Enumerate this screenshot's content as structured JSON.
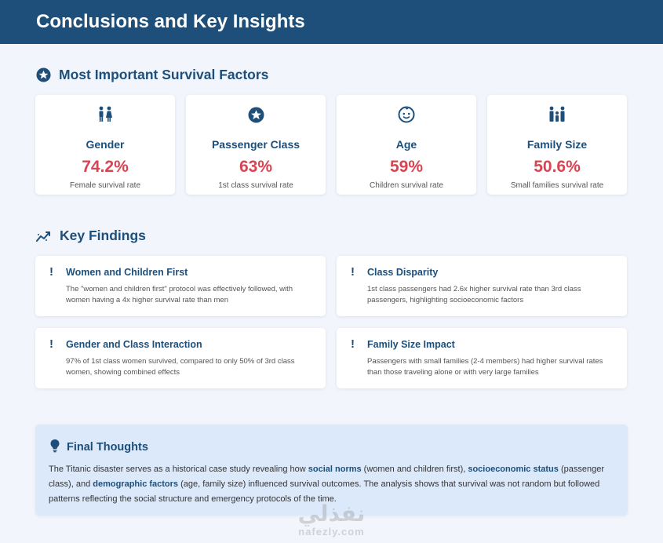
{
  "header": {
    "title": "Conclusions and Key Insights"
  },
  "factors_section": {
    "title": "Most Important Survival Factors",
    "icon": "star-circle-icon",
    "cards": [
      {
        "icon": "gender-icon",
        "name": "Gender",
        "value": "74.2%",
        "desc": "Female survival rate"
      },
      {
        "icon": "star-circle-icon",
        "name": "Passenger Class",
        "value": "63%",
        "desc": "1st class survival rate"
      },
      {
        "icon": "child-face-icon",
        "name": "Age",
        "value": "59%",
        "desc": "Children survival rate"
      },
      {
        "icon": "family-icon",
        "name": "Family Size",
        "value": "50.6%",
        "desc": "Small families survival rate"
      }
    ]
  },
  "findings_section": {
    "title": "Key Findings",
    "icon": "trend-chart-icon",
    "items": [
      {
        "mark": "!",
        "title": "Women and Children First",
        "text": "The \"women and children first\" protocol was effectively followed, with women having a 4x higher survival rate than men"
      },
      {
        "mark": "!",
        "title": "Class Disparity",
        "text": "1st class passengers had 2.6x higher survival rate than 3rd class passengers, highlighting socioeconomic factors"
      },
      {
        "mark": "!",
        "title": "Gender and Class Interaction",
        "text": "97% of 1st class women survived, compared to only 50% of 3rd class women, showing combined effects"
      },
      {
        "mark": "!",
        "title": "Family Size Impact",
        "text": "Passengers with small families (2-4 members) had higher survival rates than those traveling alone or with very large families"
      }
    ]
  },
  "final_thoughts": {
    "title": "Final Thoughts",
    "icon": "lightbulb-icon",
    "text_1": "The Titanic disaster serves as a historical case study revealing how ",
    "bold_1": "social norms",
    "text_2": " (women and children first), ",
    "bold_2": "socioeconomic status",
    "text_3": " (passenger class), and ",
    "bold_3": "demographic factors",
    "text_4": " (age, family size) influenced survival outcomes. The analysis shows that survival was not random but followed patterns reflecting the social structure and emergency protocols of the time."
  },
  "watermark": {
    "arabic": "نفذلي",
    "latin": "nafezly.com"
  },
  "colors": {
    "primary": "#1d4f7a",
    "accent_red": "#d94452",
    "background": "#f2f6fc",
    "final_bg": "#dce9fa"
  }
}
